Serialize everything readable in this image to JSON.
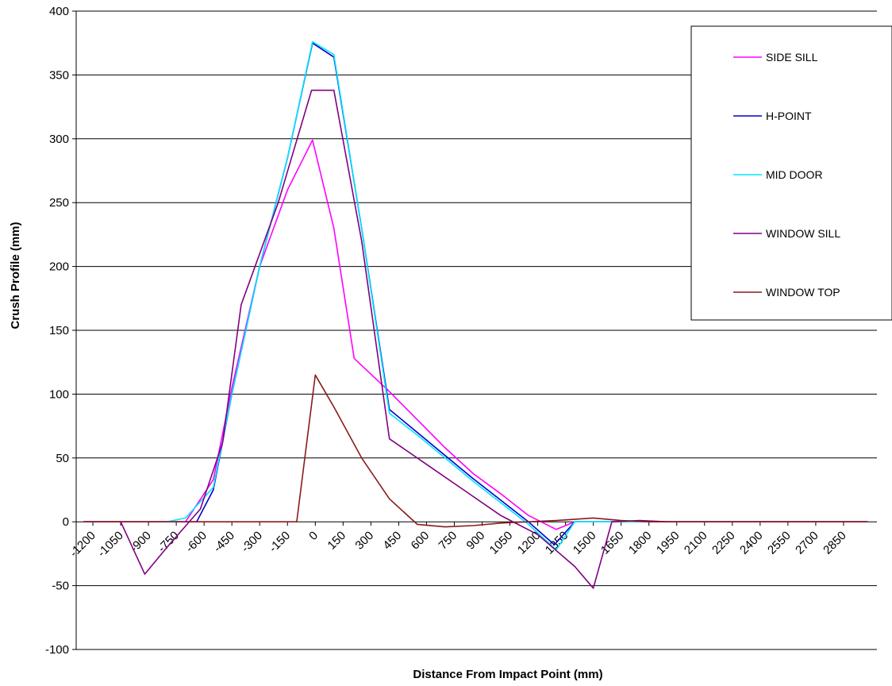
{
  "chart_data": {
    "type": "line",
    "title": "",
    "xlabel": "Distance From Impact Point (mm)",
    "ylabel": "Crush Profile (mm)",
    "ylim": [
      -100,
      400
    ],
    "yticks": [
      -100,
      -50,
      0,
      50,
      100,
      150,
      200,
      250,
      300,
      350,
      400
    ],
    "xticks": [
      -1200,
      -1050,
      -900,
      -750,
      -600,
      -450,
      -300,
      -150,
      0,
      150,
      300,
      450,
      600,
      750,
      900,
      1050,
      1200,
      1350,
      1500,
      1650,
      1800,
      1950,
      2100,
      2250,
      2400,
      2550,
      2700,
      2850
    ],
    "xtick_labels": [
      "-1200",
      "-1050",
      "-900",
      "-750",
      "-600",
      "-450",
      "-300",
      "-150",
      "0",
      "150",
      "300",
      "450",
      "600",
      "750",
      "900",
      "1050",
      "1200",
      "1350",
      "1500",
      "1650",
      "1800",
      "1950",
      "2100",
      "2250",
      "2400",
      "2550",
      "2700",
      "2850"
    ],
    "ytick_labels": [
      "-100",
      "-50",
      "0",
      "50",
      "100",
      "150",
      "200",
      "250",
      "300",
      "350",
      "400"
    ],
    "grid": "horizontal",
    "legend_position": "top-right",
    "series": [
      {
        "name": "SIDE SILL",
        "color": "#ff00ff",
        "points": [
          [
            -1250,
            0
          ],
          [
            -1000,
            0
          ],
          [
            -800,
            0
          ],
          [
            -700,
            0
          ],
          [
            -550,
            33
          ],
          [
            -450,
            105
          ],
          [
            -300,
            200
          ],
          [
            -150,
            260
          ],
          [
            -15,
            299
          ],
          [
            100,
            230
          ],
          [
            210,
            128
          ],
          [
            400,
            102
          ],
          [
            550,
            80
          ],
          [
            700,
            58
          ],
          [
            850,
            38
          ],
          [
            1000,
            22
          ],
          [
            1150,
            5
          ],
          [
            1300,
            -6
          ],
          [
            1400,
            0
          ],
          [
            1550,
            0
          ],
          [
            1700,
            0
          ],
          [
            1800,
            0
          ],
          [
            1950,
            0
          ],
          [
            2100,
            0
          ],
          [
            2250,
            0
          ],
          [
            2400,
            0
          ],
          [
            2550,
            0
          ],
          [
            2700,
            0
          ],
          [
            2850,
            0
          ],
          [
            2980,
            0
          ]
        ]
      },
      {
        "name": "H-POINT",
        "color": "#0000cd",
        "points": [
          [
            -1250,
            0
          ],
          [
            -1000,
            0
          ],
          [
            -800,
            0
          ],
          [
            -640,
            0
          ],
          [
            -550,
            25
          ],
          [
            -450,
            100
          ],
          [
            -300,
            200
          ],
          [
            -150,
            285
          ],
          [
            -15,
            375
          ],
          [
            100,
            364
          ],
          [
            250,
            230
          ],
          [
            400,
            88
          ],
          [
            550,
            70
          ],
          [
            700,
            52
          ],
          [
            850,
            34
          ],
          [
            1000,
            17
          ],
          [
            1150,
            0
          ],
          [
            1290,
            -18
          ],
          [
            1400,
            0
          ],
          [
            1550,
            0
          ],
          [
            1700,
            0
          ],
          [
            1800,
            0
          ],
          [
            1950,
            0
          ],
          [
            2100,
            0
          ],
          [
            2250,
            0
          ],
          [
            2400,
            0
          ],
          [
            2550,
            0
          ],
          [
            2700,
            0
          ],
          [
            2850,
            0
          ],
          [
            2980,
            0
          ]
        ]
      },
      {
        "name": "MID DOOR",
        "color": "#00e5ff",
        "points": [
          [
            -1250,
            0
          ],
          [
            -1000,
            0
          ],
          [
            -800,
            0
          ],
          [
            -700,
            3
          ],
          [
            -550,
            27
          ],
          [
            -450,
            100
          ],
          [
            -300,
            200
          ],
          [
            -150,
            285
          ],
          [
            -15,
            376
          ],
          [
            100,
            366
          ],
          [
            250,
            230
          ],
          [
            400,
            85
          ],
          [
            550,
            68
          ],
          [
            700,
            50
          ],
          [
            850,
            32
          ],
          [
            1000,
            15
          ],
          [
            1150,
            -2
          ],
          [
            1300,
            -22
          ],
          [
            1400,
            0
          ],
          [
            1550,
            0
          ],
          [
            1700,
            0
          ],
          [
            1800,
            0
          ],
          [
            1950,
            0
          ],
          [
            2100,
            0
          ],
          [
            2250,
            0
          ],
          [
            2400,
            0
          ],
          [
            2550,
            0
          ],
          [
            2700,
            0
          ],
          [
            2850,
            0
          ],
          [
            2980,
            0
          ]
        ]
      },
      {
        "name": "WINDOW SILL",
        "color": "#800080",
        "points": [
          [
            -1250,
            0
          ],
          [
            -1050,
            0
          ],
          [
            -920,
            -41
          ],
          [
            -800,
            -20
          ],
          [
            -620,
            10
          ],
          [
            -500,
            62
          ],
          [
            -400,
            170
          ],
          [
            -200,
            250
          ],
          [
            -20,
            338
          ],
          [
            100,
            338
          ],
          [
            250,
            220
          ],
          [
            400,
            65
          ],
          [
            600,
            45
          ],
          [
            800,
            25
          ],
          [
            1000,
            5
          ],
          [
            1200,
            -10
          ],
          [
            1400,
            -35
          ],
          [
            1500,
            -52
          ],
          [
            1600,
            0
          ],
          [
            1750,
            1
          ],
          [
            1900,
            0
          ],
          [
            2100,
            0
          ],
          [
            2250,
            0
          ],
          [
            2400,
            0
          ],
          [
            2550,
            0
          ],
          [
            2700,
            0
          ],
          [
            2850,
            0
          ],
          [
            2980,
            0
          ]
        ]
      },
      {
        "name": "WINDOW TOP",
        "color": "#8b1a1a",
        "points": [
          [
            -1250,
            0
          ],
          [
            -1000,
            0
          ],
          [
            -800,
            0
          ],
          [
            -650,
            0
          ],
          [
            -450,
            0
          ],
          [
            -300,
            0
          ],
          [
            -150,
            0
          ],
          [
            -100,
            0
          ],
          [
            0,
            115
          ],
          [
            100,
            90
          ],
          [
            250,
            50
          ],
          [
            400,
            18
          ],
          [
            550,
            -2
          ],
          [
            700,
            -4
          ],
          [
            850,
            -3
          ],
          [
            1000,
            -1
          ],
          [
            1150,
            0
          ],
          [
            1300,
            1
          ],
          [
            1500,
            3
          ],
          [
            1650,
            1
          ],
          [
            1800,
            0
          ],
          [
            1950,
            0
          ],
          [
            2100,
            0
          ],
          [
            2250,
            0
          ],
          [
            2400,
            0
          ],
          [
            2550,
            0
          ],
          [
            2700,
            0
          ],
          [
            2850,
            0
          ],
          [
            2980,
            0
          ]
        ]
      }
    ]
  }
}
